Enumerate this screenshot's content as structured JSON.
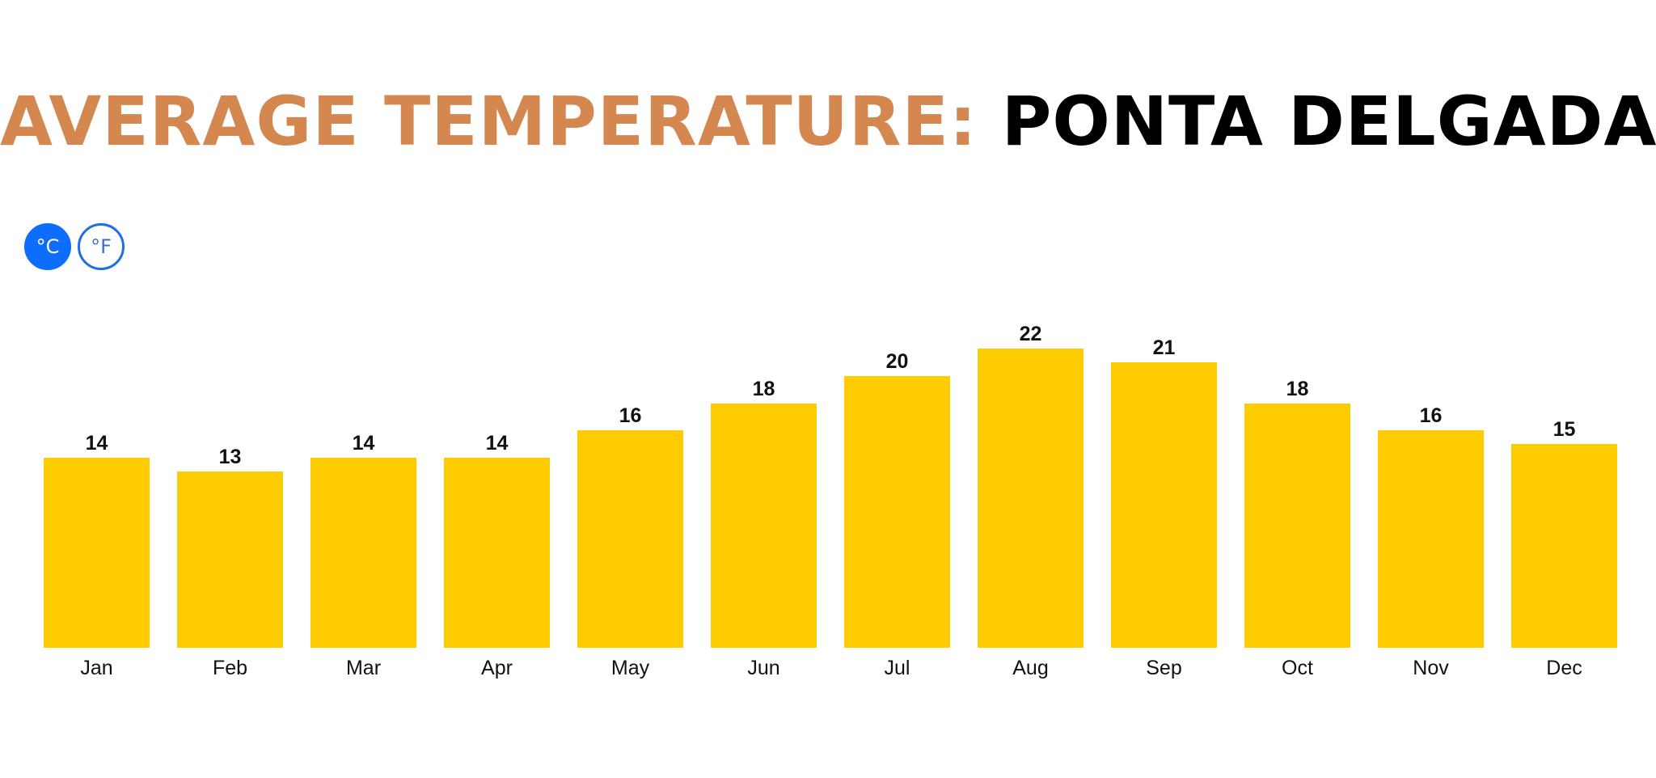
{
  "header": {
    "title_accent": "AVERAGE TEMPERATURE:",
    "title_place": "PONTA DELGADA"
  },
  "unit_toggle": {
    "celsius_label": "°C",
    "fahrenheit_label": "°F",
    "selected": "celsius"
  },
  "colors": {
    "bar": "#fecc00",
    "title_accent": "#d4874f",
    "toggle_active": "#0d6efd"
  },
  "chart_data": {
    "type": "bar",
    "title": "AVERAGE TEMPERATURE: PONTA DELGADA",
    "xlabel": "",
    "ylabel": "°C",
    "categories": [
      "Jan",
      "Feb",
      "Mar",
      "Apr",
      "May",
      "Jun",
      "Jul",
      "Aug",
      "Sep",
      "Oct",
      "Nov",
      "Dec"
    ],
    "values": [
      14,
      13,
      14,
      14,
      16,
      18,
      20,
      22,
      21,
      18,
      16,
      15
    ],
    "ylim": [
      0,
      22
    ],
    "grid": false,
    "legend": "none",
    "data_labels": true
  }
}
